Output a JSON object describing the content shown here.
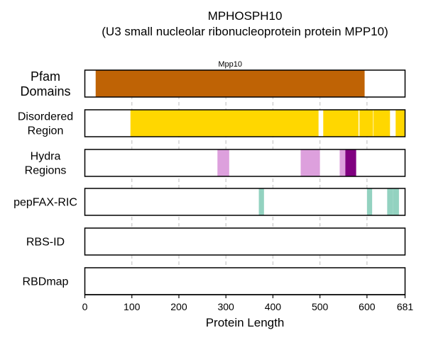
{
  "chart_data": {
    "type": "bar",
    "title": "MPHOSPH10",
    "subtitle": "(U3 small nucleolar ribonucleoprotein protein MPP10)",
    "xlabel": "Protein Length",
    "xlim": [
      0,
      681
    ],
    "xticks": [
      0,
      100,
      200,
      300,
      400,
      500,
      600,
      681
    ],
    "grid": true,
    "tracks": [
      {
        "label_lines": [
          "Pfam",
          "Domains"
        ],
        "segments": [
          {
            "start": 23,
            "end": 595,
            "color": "#bf6305",
            "label": "Mpp10"
          }
        ]
      },
      {
        "label_lines": [
          "Disordered",
          "Region"
        ],
        "segments": [
          {
            "start": 97,
            "end": 497,
            "color": "#ffd700"
          },
          {
            "start": 507,
            "end": 582,
            "color": "#ffd700"
          },
          {
            "start": 584,
            "end": 613,
            "color": "#ffd700"
          },
          {
            "start": 614,
            "end": 649,
            "color": "#ffd700"
          },
          {
            "start": 661,
            "end": 681,
            "color": "#ffd700"
          }
        ]
      },
      {
        "label_lines": [
          "Hydra",
          "Regions"
        ],
        "segments": [
          {
            "start": 282,
            "end": 307,
            "color": "#dda0dd"
          },
          {
            "start": 459,
            "end": 500,
            "color": "#dda0dd"
          },
          {
            "start": 542,
            "end": 554,
            "color": "#dda0dd"
          },
          {
            "start": 554,
            "end": 577,
            "color": "#800080"
          }
        ]
      },
      {
        "label_lines": [
          "pepFAX-RIC"
        ],
        "segments": [
          {
            "start": 370,
            "end": 381,
            "color": "#93d2c0"
          },
          {
            "start": 600,
            "end": 611,
            "color": "#93d2c0"
          },
          {
            "start": 643,
            "end": 655,
            "color": "#93d2c0"
          },
          {
            "start": 655,
            "end": 668,
            "color": "#93d2c0"
          }
        ]
      },
      {
        "label_lines": [
          "RBS-ID"
        ],
        "segments": []
      },
      {
        "label_lines": [
          "RBDmap"
        ],
        "segments": []
      }
    ]
  }
}
